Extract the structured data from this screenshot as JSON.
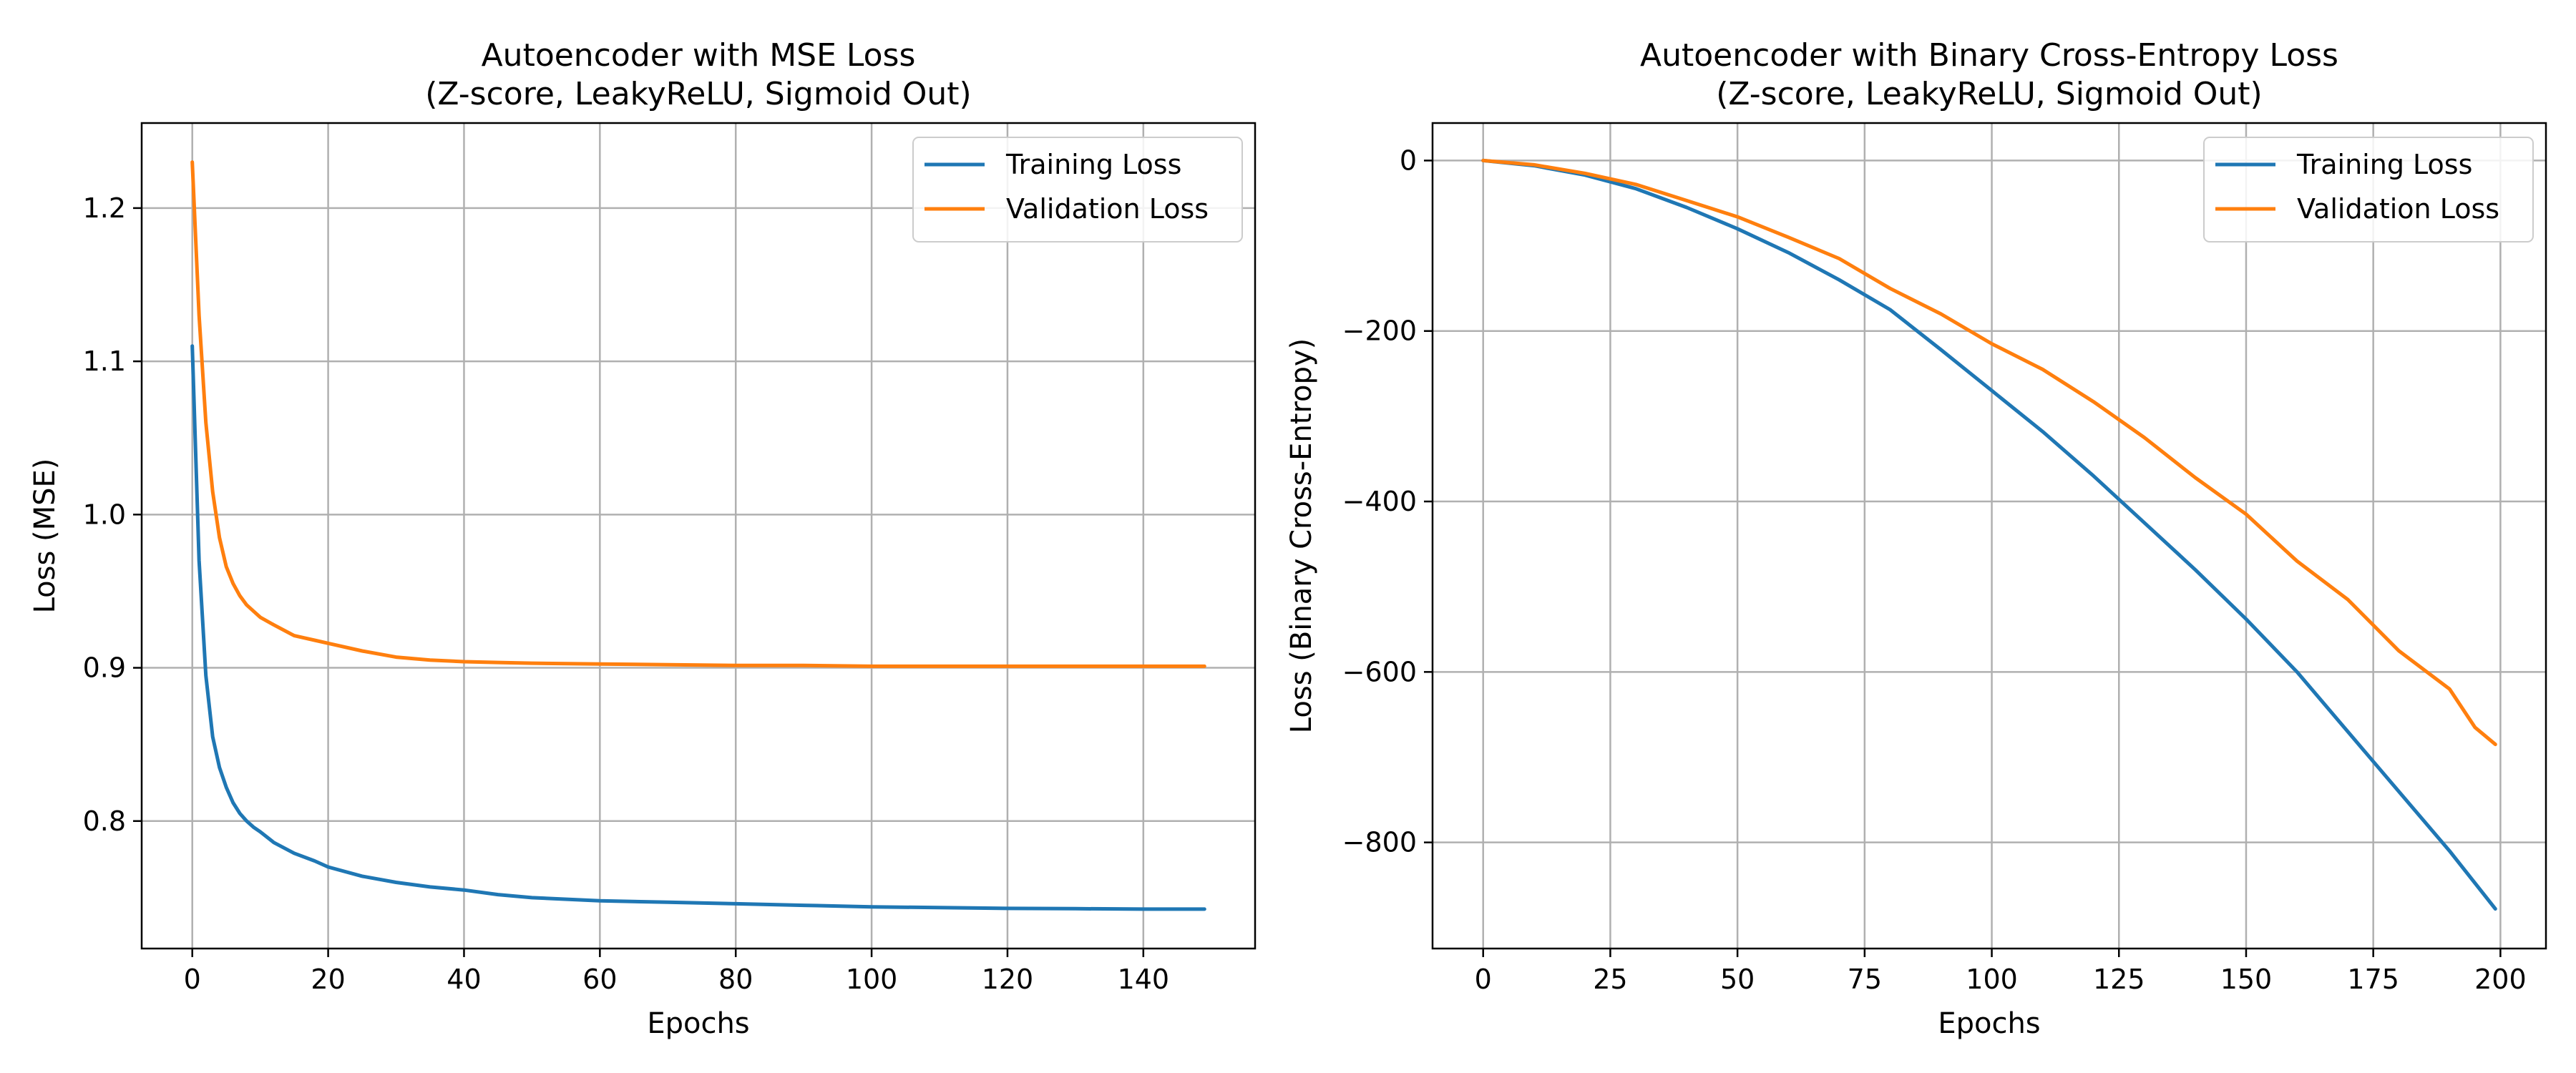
{
  "colors": {
    "training": "#1f77b4",
    "validation": "#ff7f0e",
    "grid": "#b0b0b0"
  },
  "chart_data": [
    {
      "type": "line",
      "title": "Autoencoder with MSE Loss",
      "subtitle": "(Z-score, LeakyReLU, Sigmoid Out)",
      "xlabel": "Epochs",
      "ylabel": "Loss (MSE)",
      "xlim": [
        -7.45,
        156.45
      ],
      "ylim": [
        0.7168,
        1.2555
      ],
      "xticks": [
        0,
        20,
        40,
        60,
        80,
        100,
        120,
        140
      ],
      "yticks": [
        0.8,
        0.9,
        1.0,
        1.1,
        1.2
      ],
      "ytick_labels": [
        "0.8",
        "0.9",
        "1.0",
        "1.1",
        "1.2"
      ],
      "grid": true,
      "legend": "top-right",
      "series": [
        {
          "name": "Training Loss",
          "color": "#1f77b4",
          "x": [
            0,
            1,
            2,
            3,
            4,
            5,
            6,
            7,
            8,
            9,
            10,
            12,
            15,
            18,
            20,
            25,
            30,
            35,
            40,
            45,
            50,
            60,
            70,
            80,
            90,
            100,
            110,
            120,
            130,
            140,
            149
          ],
          "y": [
            1.11,
            0.97,
            0.895,
            0.855,
            0.835,
            0.822,
            0.812,
            0.805,
            0.8,
            0.796,
            0.793,
            0.786,
            0.779,
            0.774,
            0.77,
            0.764,
            0.76,
            0.757,
            0.755,
            0.752,
            0.75,
            0.748,
            0.747,
            0.746,
            0.745,
            0.744,
            0.7435,
            0.743,
            0.7428,
            0.7425,
            0.7425
          ]
        },
        {
          "name": "Validation Loss",
          "color": "#ff7f0e",
          "x": [
            0,
            1,
            2,
            3,
            4,
            5,
            6,
            7,
            8,
            9,
            10,
            12,
            15,
            18,
            20,
            25,
            30,
            35,
            40,
            45,
            50,
            60,
            70,
            80,
            90,
            100,
            110,
            120,
            130,
            140,
            149
          ],
          "y": [
            1.23,
            1.13,
            1.06,
            1.015,
            0.985,
            0.966,
            0.955,
            0.947,
            0.941,
            0.937,
            0.933,
            0.928,
            0.921,
            0.918,
            0.916,
            0.911,
            0.907,
            0.905,
            0.904,
            0.9035,
            0.903,
            0.9025,
            0.902,
            0.9015,
            0.9015,
            0.901,
            0.901,
            0.901,
            0.901,
            0.901,
            0.901
          ]
        }
      ]
    },
    {
      "type": "line",
      "title": "Autoencoder with Binary Cross-Entropy Loss",
      "subtitle": "(Z-score, LeakyReLU, Sigmoid Out)",
      "xlabel": "Epochs",
      "ylabel": "Loss (Binary Cross-Entropy)",
      "xlim": [
        -9.95,
        208.95
      ],
      "ylim": [
        -924.5,
        44.0
      ],
      "xticks": [
        0,
        25,
        50,
        75,
        100,
        125,
        150,
        175,
        200
      ],
      "yticks": [
        0,
        -200,
        -400,
        -600,
        -800
      ],
      "ytick_labels": [
        "0",
        "−200",
        "−400",
        "−600",
        "−800"
      ],
      "grid": true,
      "legend": "top-right",
      "series": [
        {
          "name": "Training Loss",
          "color": "#1f77b4",
          "x": [
            0,
            10,
            20,
            30,
            40,
            50,
            60,
            70,
            80,
            90,
            100,
            110,
            120,
            130,
            140,
            150,
            160,
            170,
            180,
            190,
            199
          ],
          "y": [
            0,
            -6,
            -17,
            -33,
            -55,
            -80,
            -108,
            -140,
            -175,
            -222,
            -270,
            -318,
            -370,
            -425,
            -480,
            -538,
            -600,
            -670,
            -740,
            -810,
            -878
          ]
        },
        {
          "name": "Validation Loss",
          "color": "#ff7f0e",
          "x": [
            0,
            10,
            20,
            30,
            40,
            50,
            60,
            70,
            80,
            90,
            100,
            110,
            120,
            130,
            140,
            150,
            160,
            170,
            180,
            190,
            195,
            199
          ],
          "y": [
            0,
            -5,
            -15,
            -28,
            -47,
            -66,
            -90,
            -115,
            -150,
            -180,
            -215,
            -245,
            -283,
            -325,
            -372,
            -415,
            -470,
            -515,
            -575,
            -620,
            -665,
            -685
          ]
        }
      ]
    }
  ]
}
